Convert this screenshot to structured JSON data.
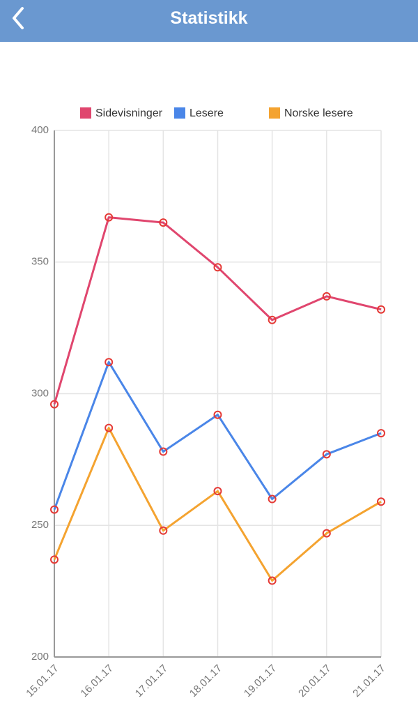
{
  "header": {
    "title": "Statistikk"
  },
  "chart_data": {
    "type": "line",
    "categories": [
      "15.01.17",
      "16.01.17",
      "17.01.17",
      "18.01.17",
      "19.01.17",
      "20.01.17",
      "21.01.17"
    ],
    "series": [
      {
        "name": "Sidevisninger",
        "color": "#e0466e",
        "values": [
          296,
          367,
          365,
          348,
          328,
          337,
          332
        ]
      },
      {
        "name": "Lesere",
        "color": "#4a86e8",
        "values": [
          256,
          312,
          278,
          292,
          260,
          277,
          285
        ]
      },
      {
        "name": "Norske lesere",
        "color": "#f4a330",
        "values": [
          237,
          287,
          248,
          263,
          229,
          247,
          259
        ]
      }
    ],
    "ylim": [
      200,
      400
    ],
    "yticks": [
      200,
      250,
      300,
      350,
      400
    ],
    "grid": true,
    "legend": "top",
    "marker_color": "#e53935"
  }
}
